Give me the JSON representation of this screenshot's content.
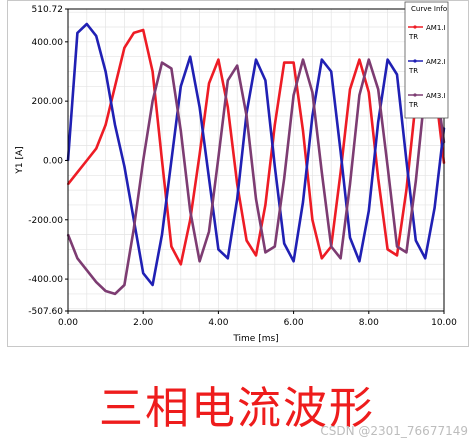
{
  "chart_data": {
    "type": "line",
    "xlabel": "Time [ms]",
    "ylabel": "Y1 [A]",
    "xlim": [
      0,
      10
    ],
    "ylim": [
      -507.6,
      510.72
    ],
    "x_ticks": [
      "0.00",
      "2.00",
      "4.00",
      "6.00",
      "8.00",
      "10.00"
    ],
    "y_ticks": [
      "510.72",
      "400.00",
      "200.00",
      "0.00",
      "-200.00",
      "-400.00",
      "-507.60"
    ],
    "grid": true,
    "legend": {
      "title": "Curve Info",
      "placement": "top-right",
      "entries": [
        "AM1.I\nTR",
        "AM2.I\nTR",
        "AM3.I\nTR"
      ]
    },
    "series": [
      {
        "name": "AM1.ITR",
        "color": "#ee1c25",
        "x": [
          0,
          0.25,
          0.5,
          0.75,
          1.0,
          1.25,
          1.5,
          1.75,
          2.0,
          2.25,
          2.5,
          2.75,
          3.0,
          3.25,
          3.5,
          3.75,
          4.0,
          4.25,
          4.5,
          4.75,
          5.0,
          5.25,
          5.5,
          5.75,
          6.0,
          6.25,
          6.5,
          6.75,
          7.0,
          7.25,
          7.5,
          7.75,
          8.0,
          8.25,
          8.5,
          8.75,
          9.0,
          9.25,
          9.5,
          9.75,
          10.0
        ],
        "y": [
          -80,
          -40,
          0,
          40,
          120,
          250,
          380,
          430,
          440,
          300,
          0,
          -290,
          -350,
          -200,
          20,
          260,
          340,
          180,
          -80,
          -270,
          -320,
          -150,
          120,
          330,
          330,
          100,
          -200,
          -330,
          -290,
          -40,
          240,
          340,
          230,
          -60,
          -300,
          -320,
          -100,
          200,
          330,
          260,
          -10
        ]
      },
      {
        "name": "AM2.ITR",
        "color": "#2020b4",
        "x": [
          0,
          0.25,
          0.5,
          0.75,
          1.0,
          1.25,
          1.5,
          1.75,
          2.0,
          2.25,
          2.5,
          2.75,
          3.0,
          3.25,
          3.5,
          3.75,
          4.0,
          4.25,
          4.5,
          4.75,
          5.0,
          5.25,
          5.5,
          5.75,
          6.0,
          6.25,
          6.5,
          6.75,
          7.0,
          7.25,
          7.5,
          7.75,
          8.0,
          8.25,
          8.5,
          8.75,
          9.0,
          9.25,
          9.5,
          9.75,
          10.0
        ],
        "y": [
          0,
          430,
          460,
          420,
          300,
          120,
          -20,
          -200,
          -380,
          -420,
          -250,
          0,
          250,
          350,
          180,
          -60,
          -300,
          -330,
          -130,
          160,
          340,
          270,
          -20,
          -280,
          -340,
          -140,
          150,
          340,
          300,
          30,
          -260,
          -340,
          -170,
          130,
          340,
          290,
          0,
          -270,
          -330,
          -160,
          110
        ]
      },
      {
        "name": "AM3.ITR",
        "color": "#7d3c72",
        "x": [
          0,
          0.25,
          0.5,
          0.75,
          1.0,
          1.25,
          1.5,
          1.75,
          2.0,
          2.25,
          2.5,
          2.75,
          3.0,
          3.25,
          3.5,
          3.75,
          4.0,
          4.25,
          4.5,
          4.75,
          5.0,
          5.25,
          5.5,
          5.75,
          6.0,
          6.25,
          6.5,
          6.75,
          7.0,
          7.25,
          7.5,
          7.75,
          8.0,
          8.25,
          8.5,
          8.75,
          9.0,
          9.25,
          9.5,
          9.75,
          10.0
        ],
        "y": [
          -250,
          -330,
          -370,
          -410,
          -440,
          -450,
          -420,
          -230,
          0,
          200,
          330,
          310,
          100,
          -170,
          -340,
          -240,
          10,
          270,
          320,
          150,
          -130,
          -310,
          -290,
          -60,
          220,
          340,
          230,
          -40,
          -290,
          -330,
          -80,
          220,
          340,
          240,
          -20,
          -290,
          -310,
          -70,
          240,
          300,
          60
        ]
      }
    ]
  },
  "caption": "三相电流波形",
  "watermark": "CSDN @2301_76677149",
  "colors": {
    "caption": "#ee1c1c",
    "grid": "#e4e4e4",
    "axis": "#000000"
  }
}
